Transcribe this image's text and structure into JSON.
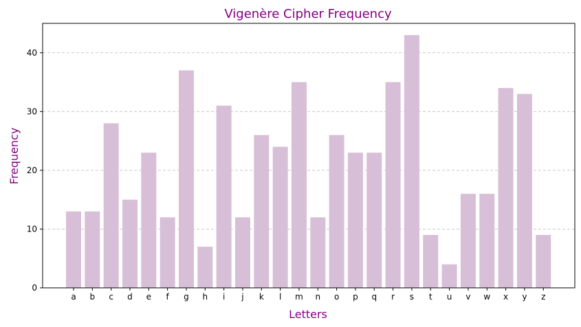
{
  "chart_data": {
    "type": "bar",
    "title": "Vigenère Cipher Frequency",
    "xlabel": "Letters",
    "ylabel": "Frequency",
    "categories": [
      "a",
      "b",
      "c",
      "d",
      "e",
      "f",
      "g",
      "h",
      "i",
      "j",
      "k",
      "l",
      "m",
      "n",
      "o",
      "p",
      "q",
      "r",
      "s",
      "t",
      "u",
      "v",
      "w",
      "x",
      "y",
      "z"
    ],
    "values": [
      13,
      13,
      28,
      15,
      23,
      12,
      37,
      7,
      31,
      12,
      26,
      24,
      35,
      12,
      26,
      23,
      23,
      35,
      43,
      9,
      4,
      16,
      16,
      34,
      33,
      9
    ],
    "ylim": [
      0,
      45
    ],
    "yticks": [
      0,
      10,
      20,
      30,
      40
    ],
    "grid": "y-dashed",
    "colors": {
      "bar": "#d8bfd8",
      "title": "#800080",
      "label": "#800080",
      "grid": "#c8c8c8",
      "axis": "#000000"
    }
  }
}
